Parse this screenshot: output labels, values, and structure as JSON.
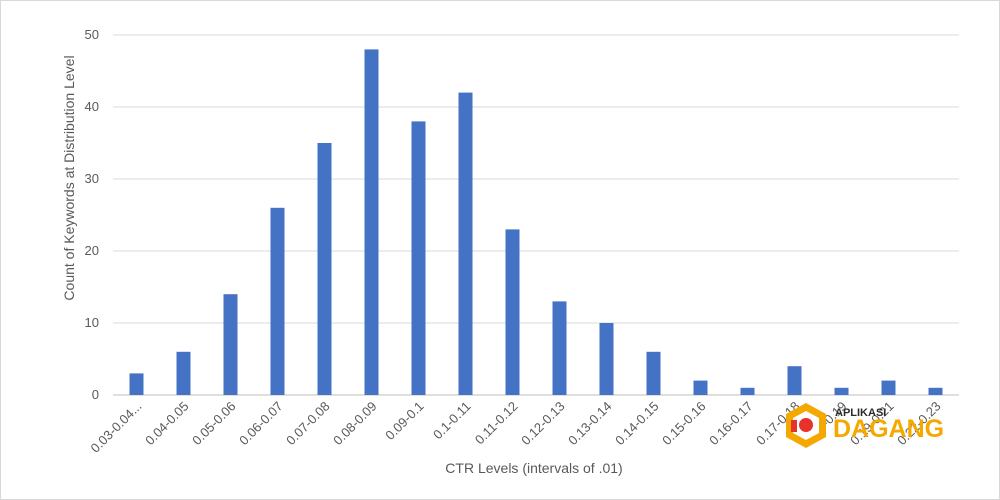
{
  "chart_data": {
    "type": "bar",
    "title": "",
    "xlabel": "CTR Levels (intervals of .01)",
    "ylabel": "Count of Keywords at Distribution Level",
    "ylim": [
      0,
      50
    ],
    "yticks": [
      0,
      10,
      20,
      30,
      40,
      50
    ],
    "grid": true,
    "legend": "none",
    "bar_color": "#4472c4",
    "categories": [
      "0.03-0.04...",
      "0.04-0.05",
      "0.05-0.06",
      "0.06-0.07",
      "0.07-0.08",
      "0.08-0.09",
      "0.09-0.1",
      "0.1-0.11",
      "0.11-0.12",
      "0.12-0.13",
      "0.13-0.14",
      "0.14-0.15",
      "0.15-0.16",
      "0.16-0.17",
      "0.17-0.18",
      "0.18-0.19",
      "0.19-0.21",
      "0.22-0.23"
    ],
    "values": [
      3,
      6,
      14,
      26,
      35,
      48,
      38,
      42,
      23,
      13,
      10,
      6,
      2,
      1,
      4,
      1,
      2,
      1
    ]
  },
  "watermark": {
    "small_text": "APLIKASI",
    "big_text": "DAGANG",
    "logo_icon": "dagang-logo-icon",
    "colors": {
      "primary": "#f5a800",
      "accent": "#e8312a"
    }
  }
}
